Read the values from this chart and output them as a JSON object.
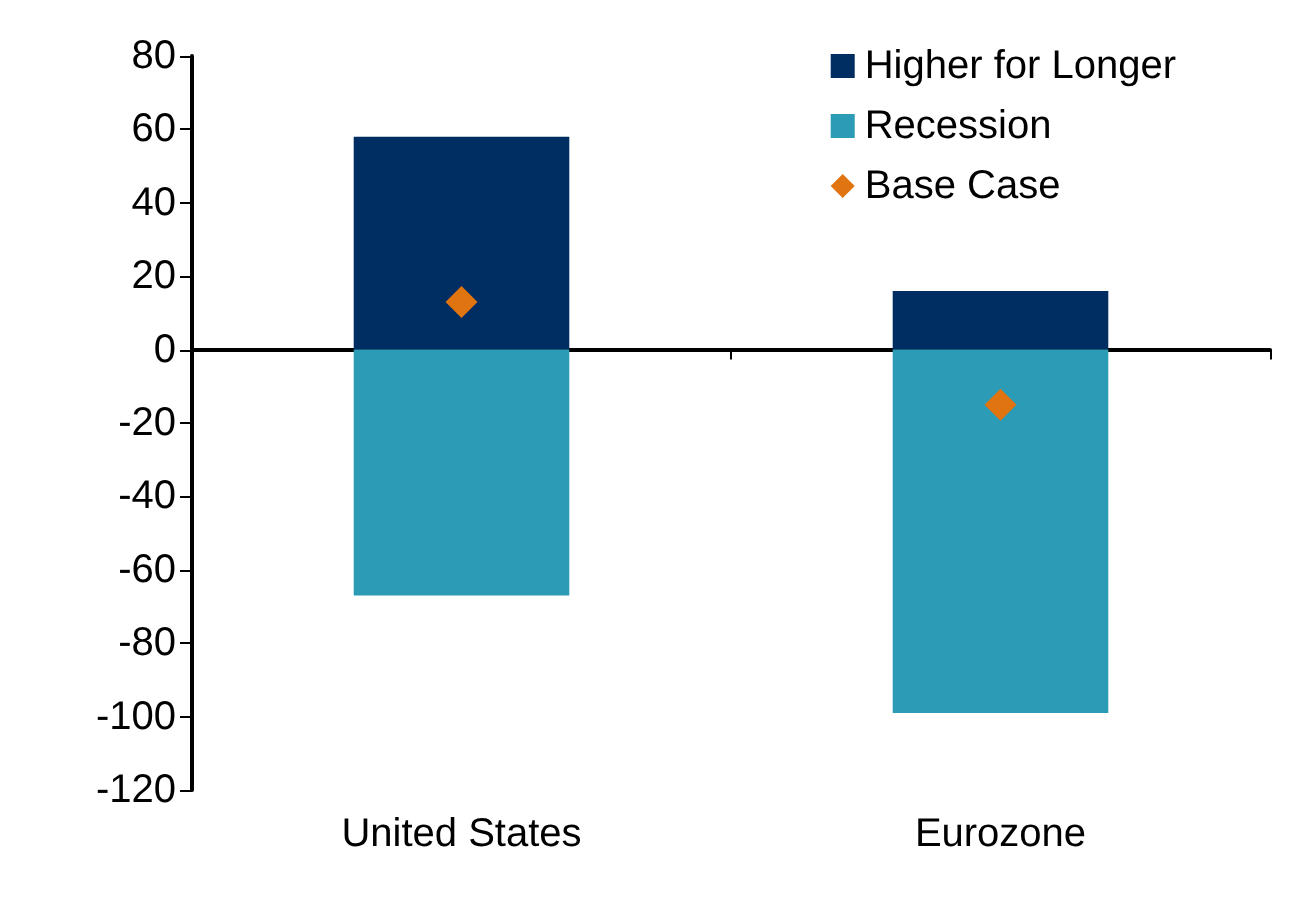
{
  "chart_data": {
    "type": "bar",
    "stacked": true,
    "categories": [
      "United States",
      "Eurozone"
    ],
    "series": [
      {
        "name": "Higher for Longer",
        "color": "#002d62",
        "values": [
          58,
          16
        ]
      },
      {
        "name": "Recession",
        "color": "#2c9bb5",
        "values": [
          -67,
          -99
        ]
      },
      {
        "name": "Base Case",
        "type": "scatter",
        "marker": "diamond",
        "color": "#e07410",
        "x": [
          "United States",
          "Eurozone"
        ],
        "values": [
          13,
          -15
        ]
      }
    ],
    "ylim": [
      -120,
      80
    ],
    "yticks": [
      -120,
      -100,
      -80,
      -60,
      -40,
      -20,
      0,
      20,
      40,
      60,
      80
    ],
    "legend": "top right"
  }
}
